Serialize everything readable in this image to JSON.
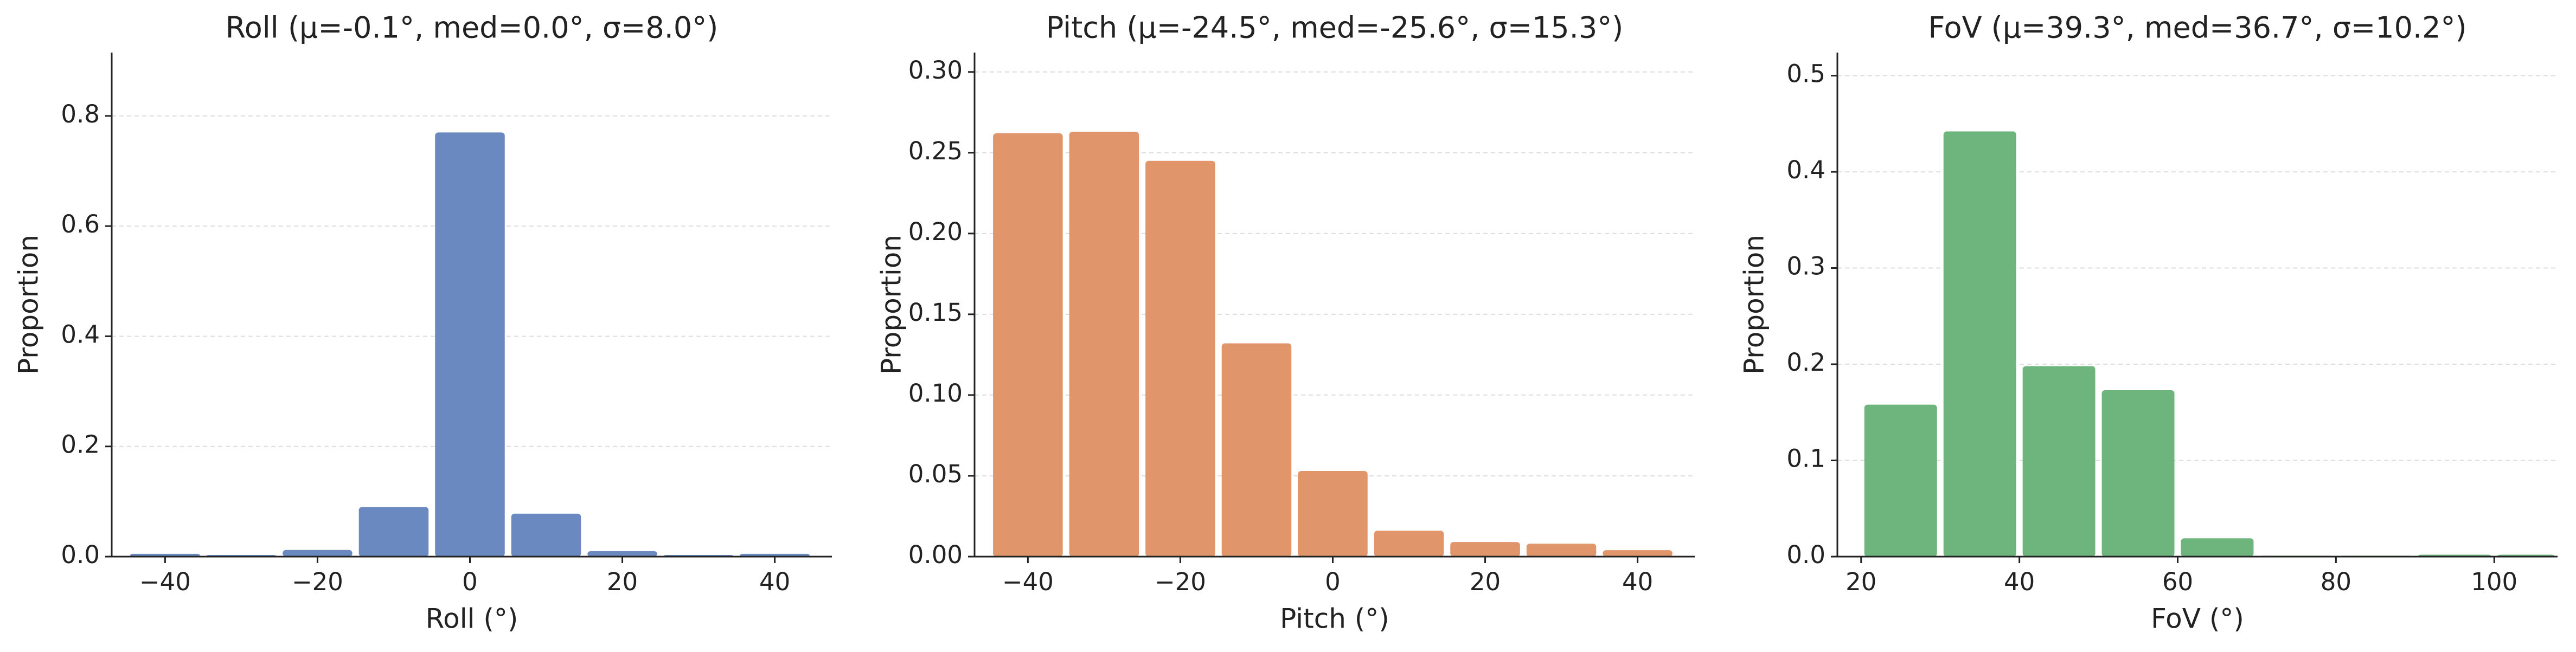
{
  "chart_data": [
    {
      "type": "histogram",
      "title": "Roll  (μ=-0.1°, med=0.0°, σ=8.0°)",
      "x_label": "Roll (°)",
      "y_label": "Proportion",
      "bins": [
        -45,
        -35,
        -25,
        -15,
        -5,
        5,
        15,
        25,
        35,
        45
      ],
      "values": [
        0.005,
        0.003,
        0.012,
        0.09,
        0.77,
        0.078,
        0.01,
        0.003,
        0.005
      ],
      "color": "#6a89c0",
      "xlim": [
        -47,
        47.5
      ],
      "ylim": [
        0,
        0.915
      ],
      "xticks": [
        {
          "value": -40,
          "label": "−40"
        },
        {
          "value": -20,
          "label": "−20"
        },
        0,
        20,
        40
      ],
      "yticks": [
        {
          "value": 0,
          "label": "0.0"
        },
        0.2,
        0.4,
        0.6,
        0.8
      ],
      "grid": true
    },
    {
      "type": "histogram",
      "title": "Pitch  (μ=-24.5°, med=-25.6°, σ=15.3°)",
      "x_label": "Pitch (°)",
      "y_label": "Proportion",
      "bins": [
        -45,
        -35,
        -25,
        -15,
        -5,
        5,
        15,
        25,
        35,
        45
      ],
      "values": [
        0.262,
        0.263,
        0.245,
        0.132,
        0.053,
        0.016,
        0.009,
        0.008,
        0.004
      ],
      "color": "#e0956a",
      "xlim": [
        -47,
        47.5
      ],
      "ylim": [
        0,
        0.312
      ],
      "xticks": [
        {
          "value": -40,
          "label": "−40"
        },
        {
          "value": -20,
          "label": "−20"
        },
        0,
        20,
        40
      ],
      "yticks": [
        {
          "value": 0,
          "label": "0.00"
        },
        0.05,
        {
          "value": 0.1,
          "label": "0.10"
        },
        0.15,
        {
          "value": 0.2,
          "label": "0.20"
        },
        0.25,
        {
          "value": 0.3,
          "label": "0.30"
        }
      ],
      "grid": true
    },
    {
      "type": "histogram",
      "title": "FoV  (μ=39.3°, med=36.7°, σ=10.2°)",
      "x_label": "FoV (°)",
      "y_label": "Proportion",
      "bins": [
        20,
        30,
        40,
        50,
        60,
        70,
        80,
        90,
        100,
        108
      ],
      "values": [
        0.158,
        0.442,
        0.198,
        0.173,
        0.019,
        0.001,
        0.001,
        0.002,
        0.002
      ],
      "color": "#6db57c",
      "xlim": [
        17,
        108
      ],
      "ylim": [
        0,
        0.524
      ],
      "xticks": [
        20,
        40,
        60,
        80,
        100
      ],
      "yticks": [
        {
          "value": 0,
          "label": "0.0"
        },
        0.1,
        0.2,
        0.3,
        0.4,
        0.5
      ],
      "grid": true
    }
  ]
}
